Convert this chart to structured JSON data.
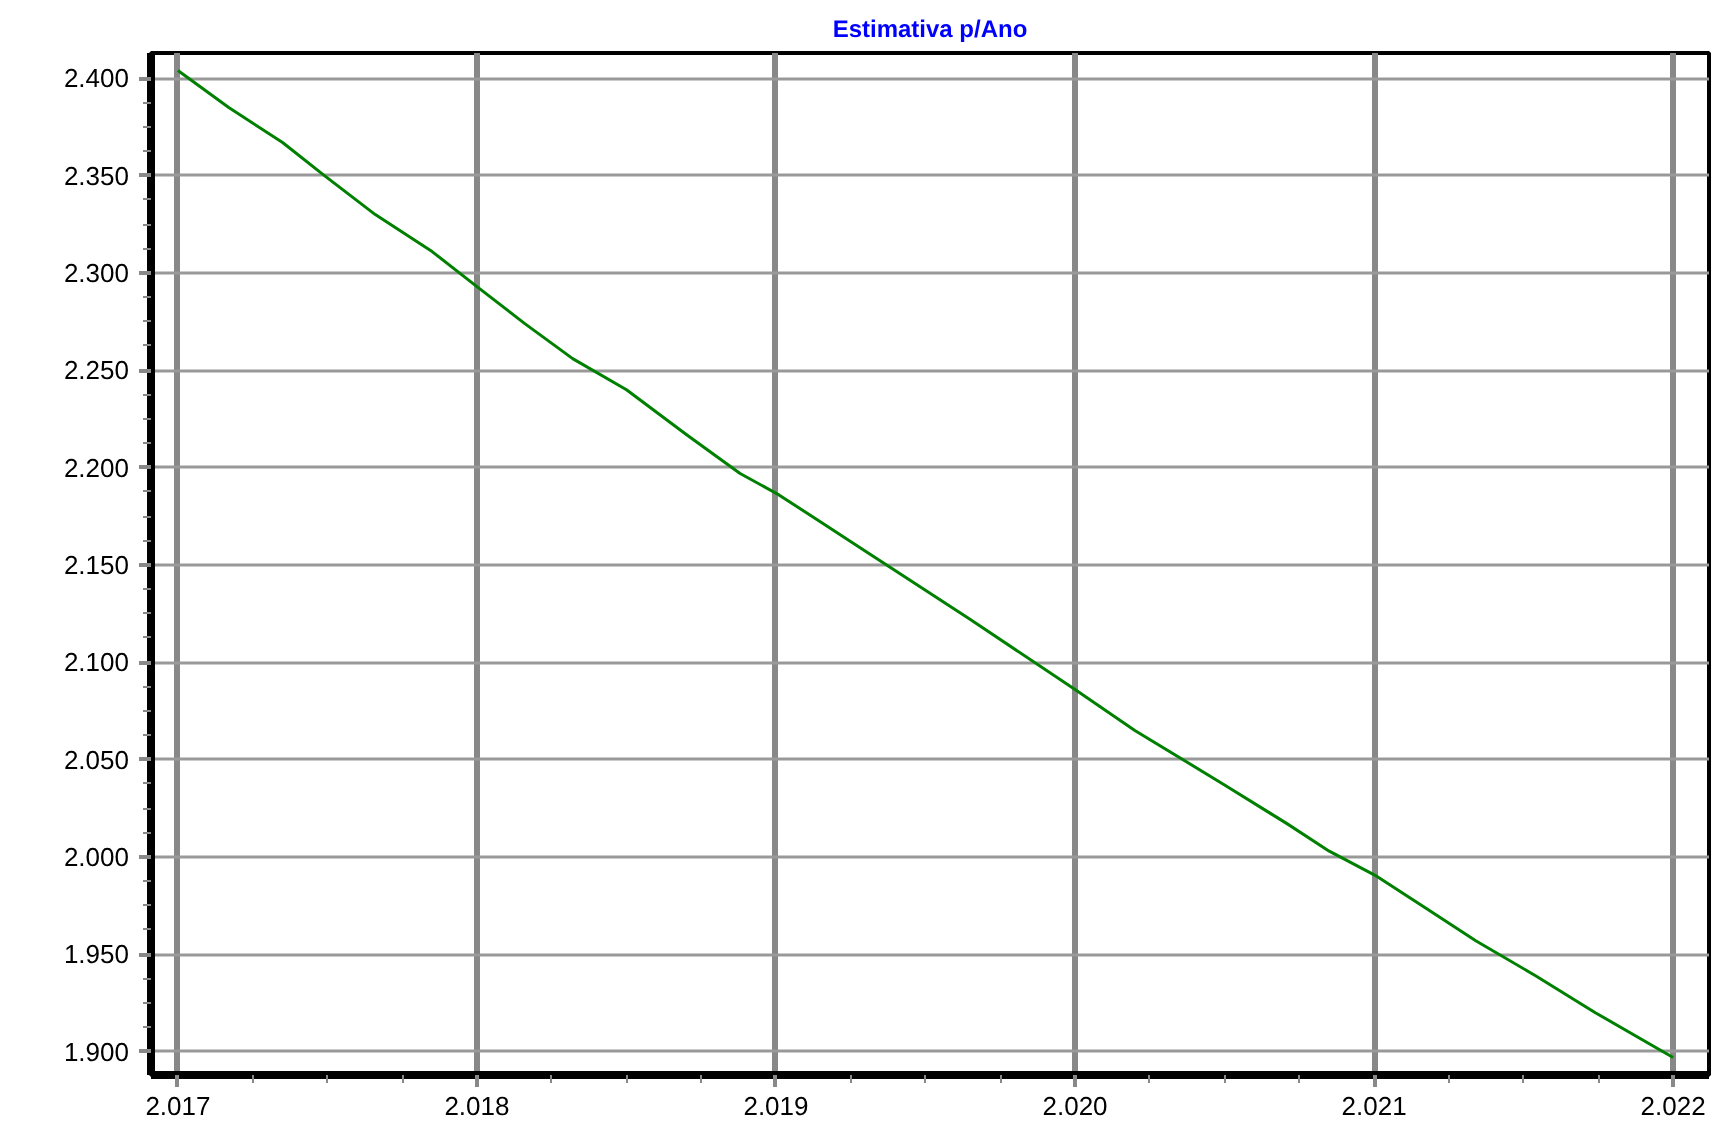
{
  "chart_data": {
    "type": "line",
    "title": "Estimativa p/Ano",
    "x": [
      2017.0,
      2017.17,
      2017.35,
      2017.49,
      2017.66,
      2017.85,
      2018.0,
      2018.16,
      2018.32,
      2018.5,
      2018.7,
      2018.88,
      2019.01,
      2019.17,
      2019.28,
      2019.65,
      2020.0,
      2020.2,
      2020.5,
      2020.71,
      2020.85,
      2021.01,
      2021.18,
      2021.34,
      2021.54,
      2021.74,
      2022.0
    ],
    "series": [
      {
        "color": "#008000",
        "values": [
          2404,
          2385,
          2367,
          2350,
          2330,
          2311,
          2293,
          2274,
          2256,
          2240,
          2217,
          2197,
          2186,
          2170,
          2159,
          2122,
          2086,
          2065,
          2037,
          2017,
          2003,
          1990,
          1973,
          1957,
          1939,
          1920,
          1897
        ]
      }
    ],
    "xlim": [
      2016.91,
      2022.12
    ],
    "ylim": [
      1888,
      2413
    ],
    "xticks": [
      {
        "value": 2017,
        "label": "2.017"
      },
      {
        "value": 2018,
        "label": "2.018"
      },
      {
        "value": 2019,
        "label": "2.019"
      },
      {
        "value": 2020,
        "label": "2.020"
      },
      {
        "value": 2021,
        "label": "2.021"
      },
      {
        "value": 2022,
        "label": "2.022"
      }
    ],
    "yticks": [
      {
        "value": 1900,
        "label": "1.900"
      },
      {
        "value": 1950,
        "label": "1.950"
      },
      {
        "value": 2000,
        "label": "2.000"
      },
      {
        "value": 2050,
        "label": "2.050"
      },
      {
        "value": 2100,
        "label": "2.100"
      },
      {
        "value": 2150,
        "label": "2.150"
      },
      {
        "value": 2200,
        "label": "2.200"
      },
      {
        "value": 2250,
        "label": "2.250"
      },
      {
        "value": 2300,
        "label": "2.300"
      },
      {
        "value": 2350,
        "label": "2.350"
      },
      {
        "value": 2400,
        "label": "2.400"
      }
    ],
    "grid": true,
    "line_style": "solid"
  }
}
